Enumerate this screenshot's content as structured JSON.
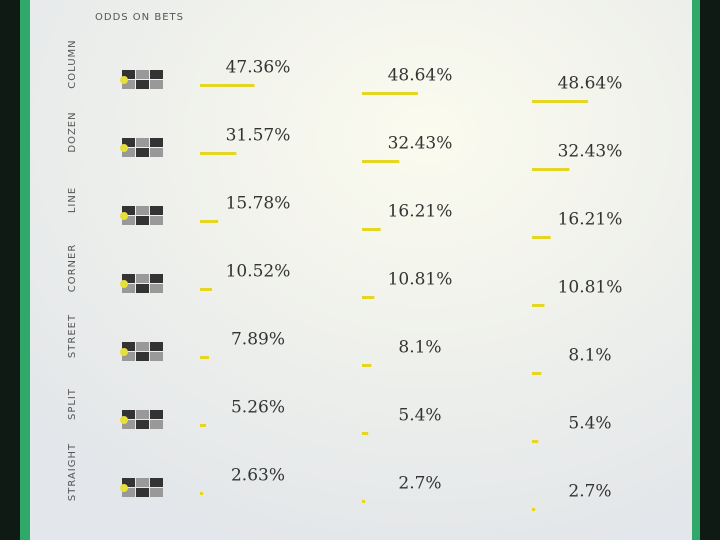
{
  "header": {
    "title": "ODDS ON BETS"
  },
  "rows": [
    {
      "label": "COLUMN",
      "values": [
        47.36,
        48.64,
        48.64
      ],
      "value_labels": [
        "47.36%",
        "48.64%",
        "48.64%"
      ]
    },
    {
      "label": "DOZEN",
      "values": [
        31.57,
        32.43,
        32.43
      ],
      "value_labels": [
        "31.57%",
        "32.43%",
        "32.43%"
      ]
    },
    {
      "label": "LINE",
      "values": [
        15.78,
        16.21,
        16.21
      ],
      "value_labels": [
        "15.78%",
        "16.21%",
        "16.21%"
      ]
    },
    {
      "label": "CORNER",
      "values": [
        10.52,
        10.81,
        10.81
      ],
      "value_labels": [
        "10.52%",
        "10.81%",
        "10.81%"
      ]
    },
    {
      "label": "STREET",
      "values": [
        7.89,
        8.1,
        8.1
      ],
      "value_labels": [
        "7.89%",
        "8.1%",
        "8.1%"
      ]
    },
    {
      "label": "SPLIT",
      "values": [
        5.26,
        5.4,
        5.4
      ],
      "value_labels": [
        "5.26%",
        "5.4%",
        "5.4%"
      ]
    },
    {
      "label": "STRAIGHT",
      "values": [
        2.63,
        2.7,
        2.7
      ],
      "value_labels": [
        "2.63%",
        "2.7%",
        "2.7%"
      ]
    }
  ]
}
